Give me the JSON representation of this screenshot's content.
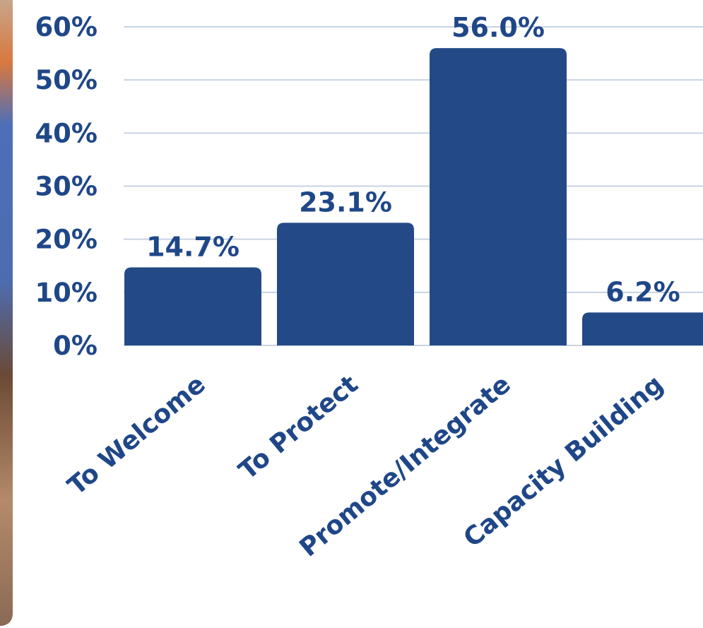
{
  "chart_data": {
    "type": "bar",
    "categories": [
      "To Welcome",
      "To Protect",
      "Promote/Integrate",
      "Capacity Building"
    ],
    "values": [
      14.7,
      23.1,
      56.0,
      6.2
    ],
    "value_labels": [
      "14.7%",
      "23.1%",
      "56.0%",
      "6.2%"
    ],
    "color": "#234a87",
    "ylim": [
      0,
      60
    ],
    "yticks": [
      {
        "value": 0,
        "label": "0%"
      },
      {
        "value": 10,
        "label": "10%"
      },
      {
        "value": 20,
        "label": "20%"
      },
      {
        "value": 30,
        "label": "30%"
      },
      {
        "value": 40,
        "label": "40%"
      },
      {
        "value": 50,
        "label": "50%"
      },
      {
        "value": 60,
        "label": "60%"
      }
    ],
    "grid": true
  }
}
